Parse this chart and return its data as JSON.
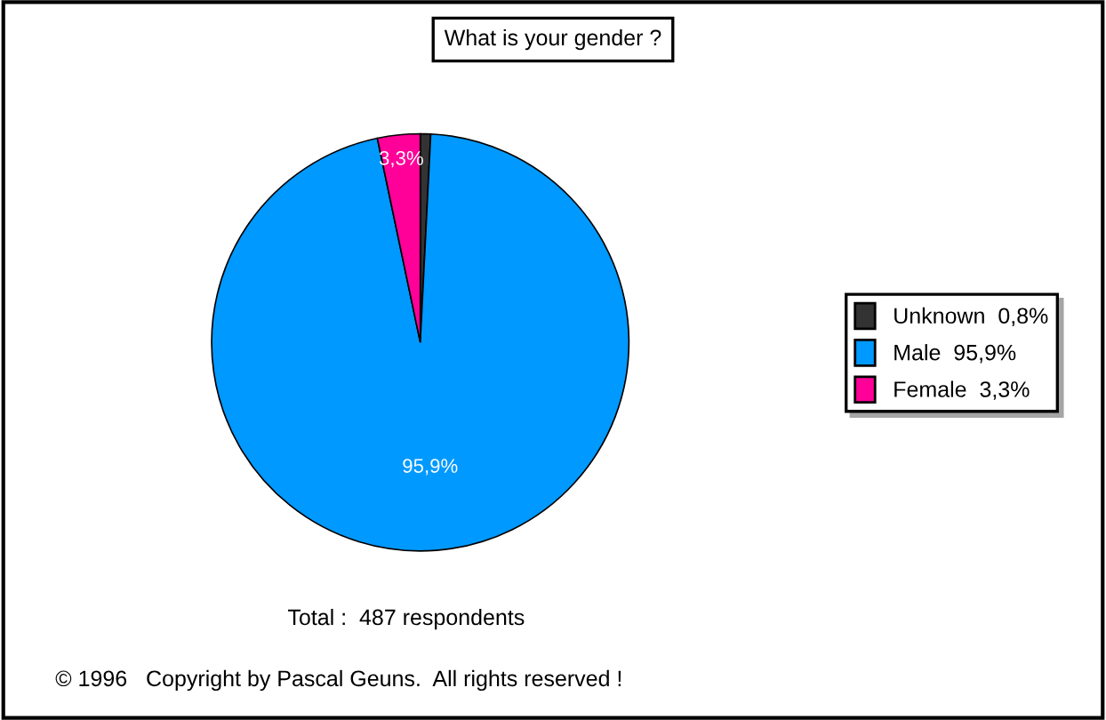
{
  "chart_data": {
    "type": "pie",
    "title": "What is your gender ?",
    "categories": [
      "Unknown  0,8%",
      "Male  95,9%",
      "Female  3,3%"
    ],
    "values": [
      0.8,
      95.9,
      3.3
    ],
    "colors": [
      "#333333",
      "#0099ff",
      "#ff0099"
    ],
    "value_labels": [
      null,
      "95,9%",
      "3,3%"
    ],
    "legend": "right",
    "annotations": [
      "Total :  487 respondents",
      "© 1996   Copyright by Pascal Geuns.  All rights reserved !"
    ]
  }
}
